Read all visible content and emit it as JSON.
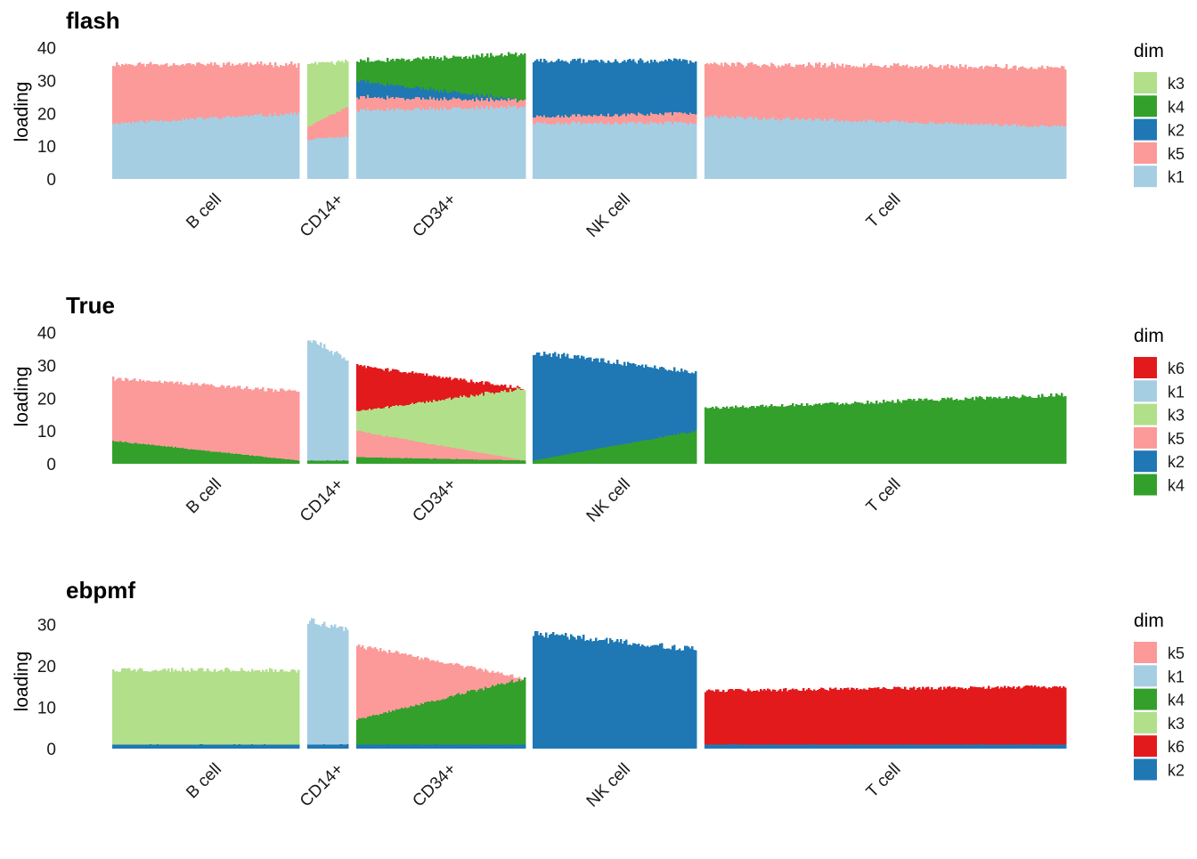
{
  "chart_data": [
    {
      "type": "bar",
      "subtype": "structure-plot (stacked bars per cell, grouped by cell type)",
      "title": "flash",
      "ylabel": "loading",
      "xlabel": "",
      "ylim": [
        0,
        41
      ],
      "yticks": [
        0,
        10,
        20,
        30,
        40
      ],
      "groups": [
        "B cell",
        "CD14+",
        "CD34+",
        "NK cell",
        "T cell"
      ],
      "legend": {
        "title": "dim",
        "entries": [
          "k3",
          "k4",
          "k2",
          "k5",
          "k1"
        ]
      },
      "stack_order": [
        "k1",
        "k5",
        "k2",
        "k4",
        "k3"
      ],
      "colors": {
        "k1": "#a6cee3",
        "k2": "#1f78b4",
        "k3": "#b2df8a",
        "k4": "#33a02c",
        "k5": "#fb9a99",
        "k6": "#e31a1c"
      },
      "segments": {
        "B cell": [
          {
            "k": "k1",
            "start": 17,
            "end": 20
          },
          {
            "k": "k5",
            "start": 18,
            "end": 15
          }
        ],
        "CD14+": [
          {
            "k": "k1",
            "start": 12,
            "end": 13
          },
          {
            "k": "k5",
            "start": 4,
            "end": 9
          },
          {
            "k": "k3",
            "start": 19,
            "end": 14
          }
        ],
        "CD34+": [
          {
            "k": "k1",
            "start": 21,
            "end": 22
          },
          {
            "k": "k5",
            "start": 4,
            "end": 2
          },
          {
            "k": "k2",
            "start": 5,
            "end": 0
          },
          {
            "k": "k4",
            "start": 6,
            "end": 14
          }
        ],
        "NK cell": [
          {
            "k": "k1",
            "start": 17,
            "end": 17
          },
          {
            "k": "k5",
            "start": 2,
            "end": 3
          },
          {
            "k": "k2",
            "start": 17,
            "end": 16
          }
        ],
        "T cell": [
          {
            "k": "k1",
            "start": 19,
            "end": 16
          },
          {
            "k": "k5",
            "start": 16,
            "end": 18
          },
          {
            "k": "k2",
            "start": 0,
            "end": 0
          }
        ]
      }
    },
    {
      "type": "bar",
      "subtype": "structure-plot (stacked bars per cell, grouped by cell type)",
      "title": "True",
      "ylabel": "loading",
      "xlabel": "",
      "ylim": [
        0,
        41
      ],
      "yticks": [
        0,
        10,
        20,
        30,
        40
      ],
      "groups": [
        "B cell",
        "CD14+",
        "CD34+",
        "NK cell",
        "T cell"
      ],
      "legend": {
        "title": "dim",
        "entries": [
          "k6",
          "k1",
          "k3",
          "k5",
          "k2",
          "k4"
        ]
      },
      "stack_order": [
        "k4",
        "k2",
        "k5",
        "k3",
        "k1",
        "k6"
      ],
      "colors": {
        "k1": "#a6cee3",
        "k2": "#1f78b4",
        "k3": "#b2df8a",
        "k4": "#33a02c",
        "k5": "#fb9a99",
        "k6": "#e31a1c"
      },
      "segments": {
        "B cell": [
          {
            "k": "k4",
            "start": 7,
            "end": 1
          },
          {
            "k": "k5",
            "start": 19,
            "end": 21
          }
        ],
        "CD14+": [
          {
            "k": "k4",
            "start": 1,
            "end": 1
          },
          {
            "k": "k1",
            "start": 37,
            "end": 31
          }
        ],
        "CD34+": [
          {
            "k": "k4",
            "start": 2,
            "end": 1
          },
          {
            "k": "k3",
            "start": 6,
            "end": 22
          },
          {
            "k": "k5",
            "start": 8,
            "end": 0
          },
          {
            "k": "k6",
            "start": 14,
            "end": 0
          }
        ],
        "NK cell": [
          {
            "k": "k4",
            "start": 1,
            "end": 10
          },
          {
            "k": "k2",
            "start": 33,
            "end": 18
          }
        ],
        "T cell": [
          {
            "k": "k4",
            "start": 17,
            "end": 21
          },
          {
            "k": "k2",
            "start": 0,
            "end": 0
          }
        ]
      }
    },
    {
      "type": "bar",
      "subtype": "structure-plot (stacked bars per cell, grouped by cell type)",
      "title": "ebpmf",
      "ylabel": "loading",
      "xlabel": "",
      "ylim": [
        0,
        32.5
      ],
      "yticks": [
        0,
        10,
        20,
        30
      ],
      "groups": [
        "B cell",
        "CD14+",
        "CD34+",
        "NK cell",
        "T cell"
      ],
      "legend": {
        "title": "dim",
        "entries": [
          "k5",
          "k1",
          "k4",
          "k3",
          "k6",
          "k2"
        ]
      },
      "stack_order": [
        "k2",
        "k6",
        "k3",
        "k4",
        "k1",
        "k5"
      ],
      "colors": {
        "k1": "#a6cee3",
        "k2": "#1f78b4",
        "k3": "#b2df8a",
        "k4": "#33a02c",
        "k5": "#fb9a99",
        "k6": "#e31a1c"
      },
      "segments": {
        "B cell": [
          {
            "k": "k2",
            "start": 1,
            "end": 1
          },
          {
            "k": "k3",
            "start": 18,
            "end": 18
          }
        ],
        "CD14+": [
          {
            "k": "k2",
            "start": 1,
            "end": 1
          },
          {
            "k": "k1",
            "start": 30,
            "end": 28
          }
        ],
        "CD34+": [
          {
            "k": "k2",
            "start": 1,
            "end": 1
          },
          {
            "k": "k4",
            "start": 6,
            "end": 16
          },
          {
            "k": "k5",
            "start": 18,
            "end": 0
          }
        ],
        "NK cell": [
          {
            "k": "k2",
            "start": 28,
            "end": 24
          }
        ],
        "T cell": [
          {
            "k": "k2",
            "start": 1,
            "end": 1
          },
          {
            "k": "k6",
            "start": 13,
            "end": 14
          }
        ]
      }
    }
  ]
}
